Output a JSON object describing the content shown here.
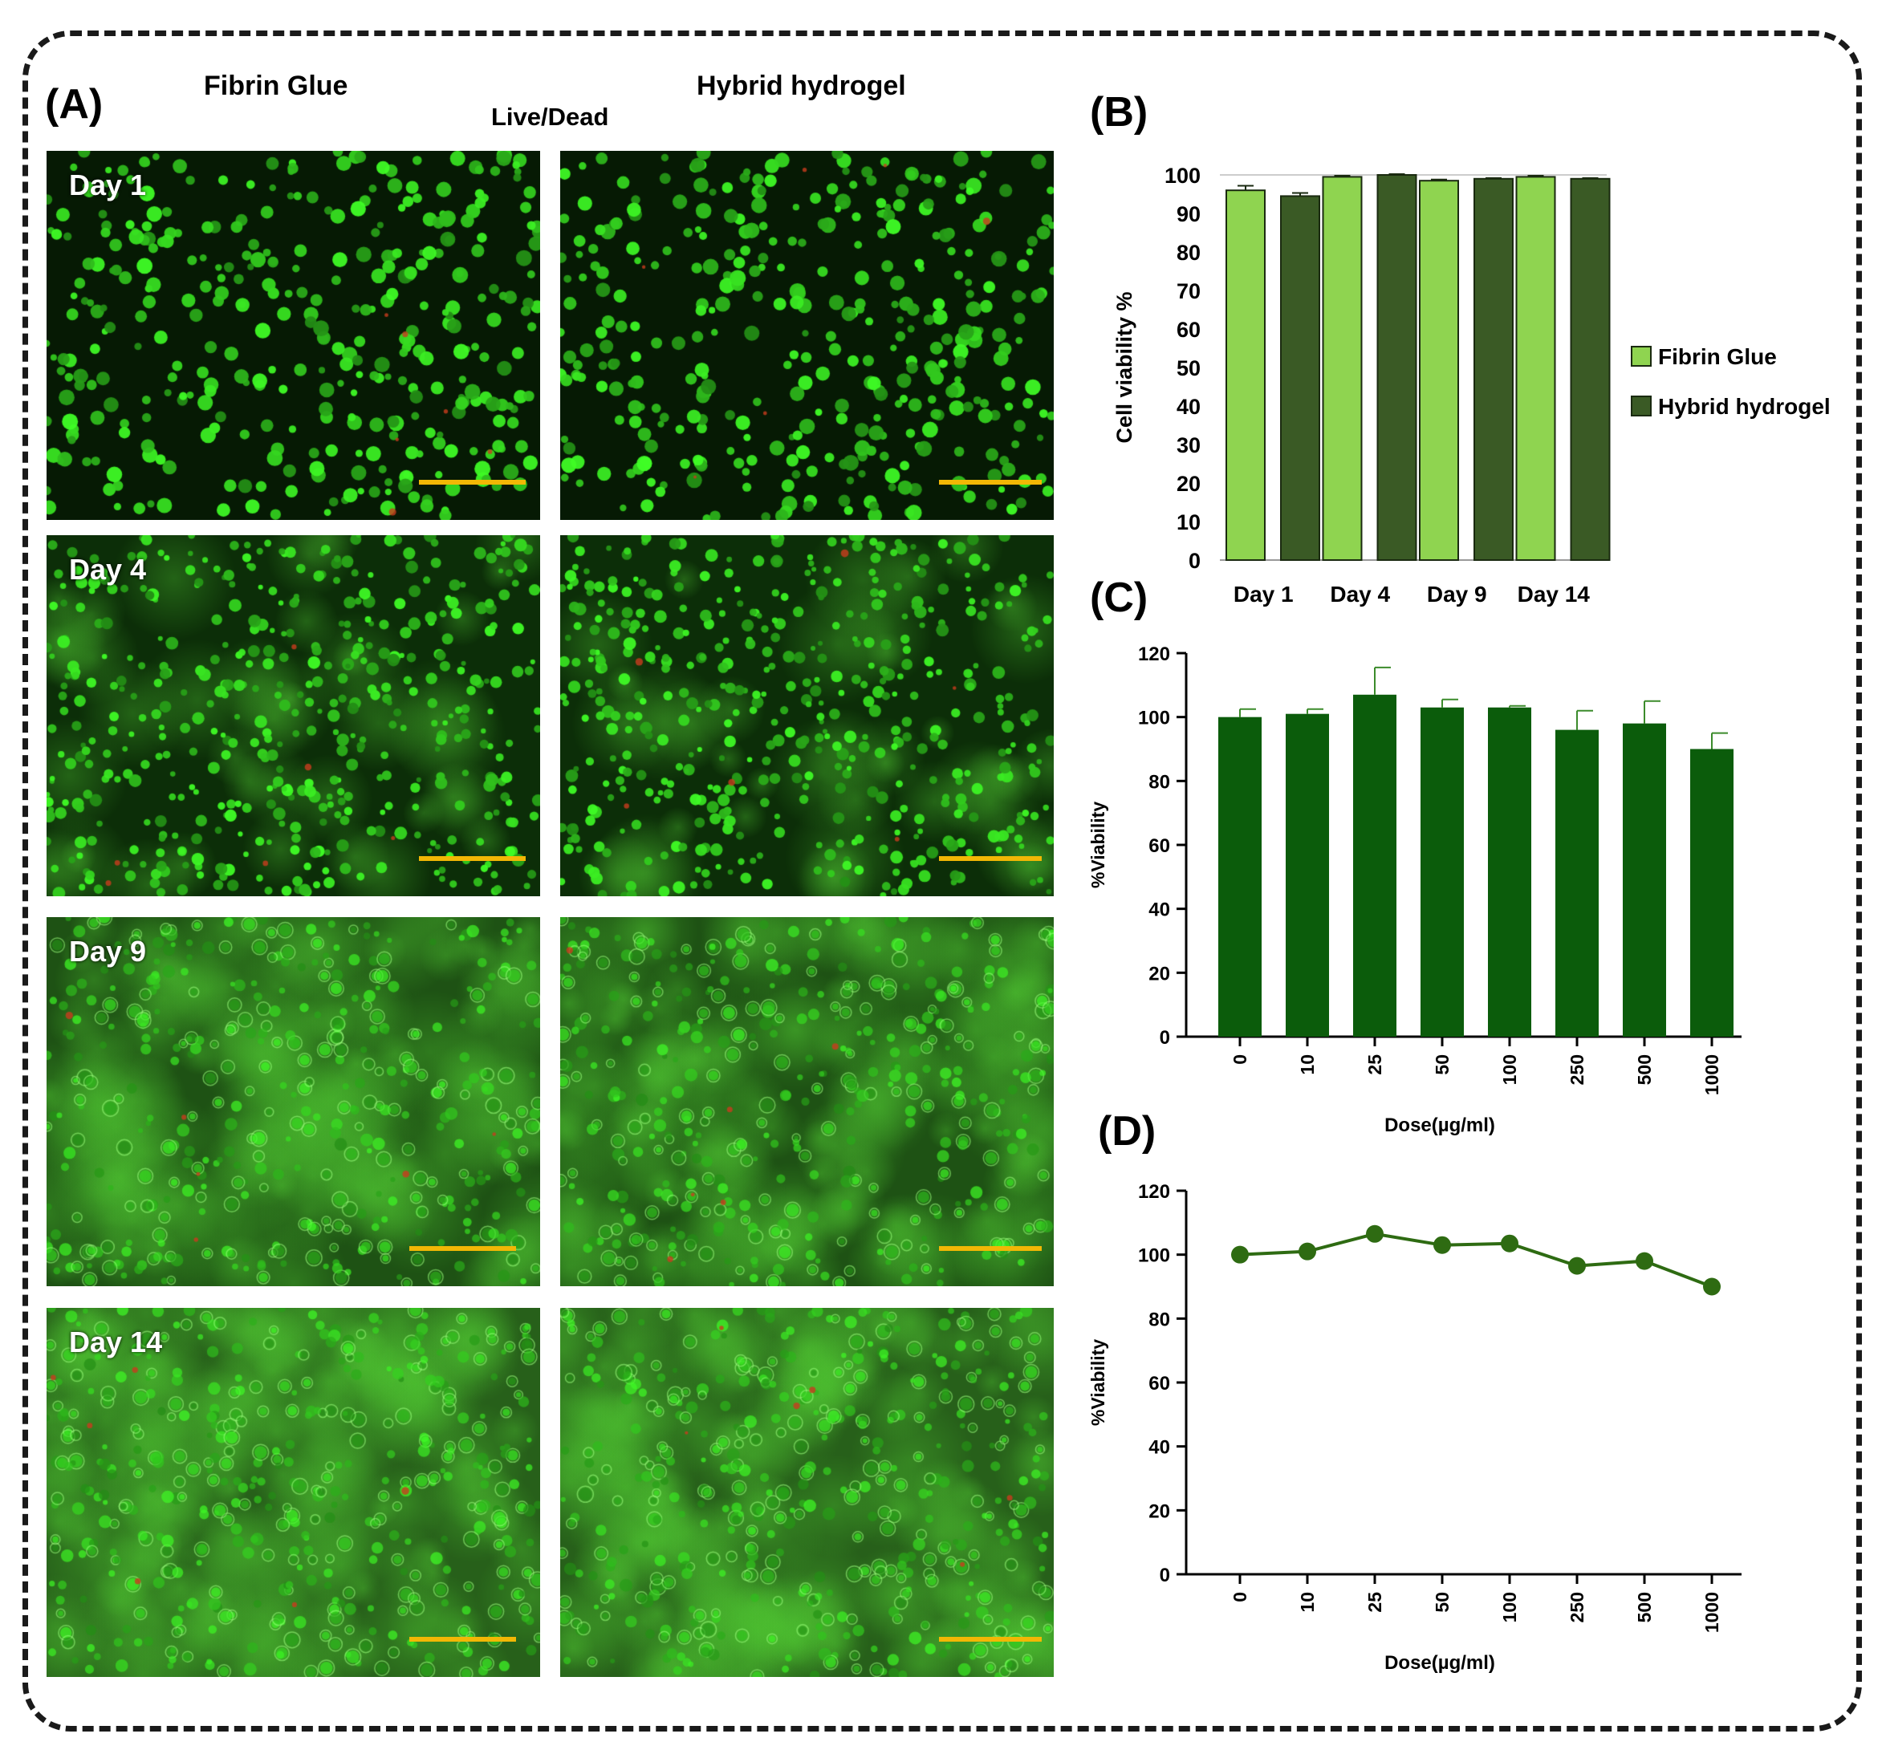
{
  "panelA": {
    "letter": "(A)",
    "col_fibrin": "Fibrin Glue",
    "col_hybrid": "Hybrid hydrogel",
    "subtitle": "Live/Dead",
    "days": [
      "Day 1",
      "Day 4",
      "Day 9",
      "Day 14"
    ]
  },
  "colors": {
    "fibrin_light": "#8fd450",
    "hybrid_dark": "#3a5a25",
    "bar_green": "#0b5c0b",
    "line_green": "#2e6b12",
    "scalebar": "#f2b705"
  },
  "chart_data": [
    {
      "panel": "(B)",
      "type": "bar",
      "categories": [
        "Day 1",
        "Day 4",
        "Day 9",
        "Day 14"
      ],
      "series": [
        {
          "name": "Fibrin Glue",
          "values": [
            96,
            99.5,
            98.5,
            99.5
          ],
          "errors": [
            1.2,
            0.3,
            0.3,
            0.3
          ]
        },
        {
          "name": "Hybrid hydrogel",
          "values": [
            94.5,
            100,
            99,
            99
          ],
          "errors": [
            0.8,
            0.2,
            0.2,
            0.2
          ]
        }
      ],
      "ylabel": "Cell viability %",
      "ylim": [
        0,
        100
      ],
      "yticks": [
        0,
        10,
        20,
        30,
        40,
        50,
        60,
        70,
        80,
        90,
        100
      ],
      "legend": "right"
    },
    {
      "panel": "(C)",
      "type": "bar",
      "categories": [
        "0",
        "10",
        "25",
        "50",
        "100",
        "250",
        "500",
        "1000"
      ],
      "values": [
        100,
        101,
        107,
        103,
        103,
        96,
        98,
        90
      ],
      "errors": [
        2.5,
        1.5,
        8.5,
        2.5,
        0.5,
        6,
        7,
        5
      ],
      "xlabel": "Dose(µg/ml)",
      "ylabel": "%Viability",
      "ylim": [
        0,
        120
      ],
      "yticks": [
        0,
        20,
        40,
        60,
        80,
        100,
        120
      ]
    },
    {
      "panel": "(D)",
      "type": "line",
      "categories": [
        "0",
        "10",
        "25",
        "50",
        "100",
        "250",
        "500",
        "1000"
      ],
      "values": [
        100,
        101,
        106.5,
        103,
        103.5,
        96.5,
        98,
        90
      ],
      "xlabel": "Dose(µg/ml)",
      "ylabel": "%Viability",
      "ylim": [
        0,
        120
      ],
      "yticks": [
        0,
        20,
        40,
        60,
        80,
        100,
        120
      ]
    }
  ]
}
